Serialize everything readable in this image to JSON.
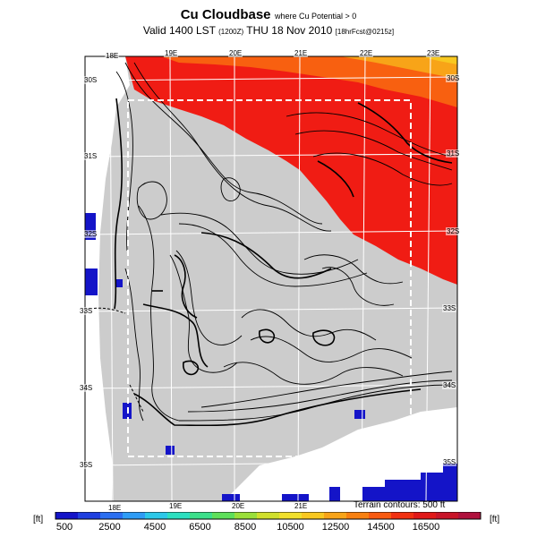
{
  "header": {
    "title": "Cu Cloudbase",
    "title_note": "where Cu Potential > 0",
    "subtitle_prefix": "Valid 1400 LST",
    "subtitle_code": "(1200Z)",
    "subtitle_date": "THU 18 Nov 2010",
    "subtitle_run": "[18hrFcst@0215z]"
  },
  "map": {
    "top_lon_labels": [
      "18E",
      "19E",
      "20E",
      "21E",
      "22E",
      "23E"
    ],
    "bottom_lon_labels": [
      "18E",
      "19E",
      "20E",
      "21E"
    ],
    "left_lat_labels": [
      "30S",
      "31S",
      "32S",
      "33S",
      "34S",
      "35S"
    ],
    "right_lat_labels": [
      "30S",
      "31S",
      "32S",
      "33S",
      "34S",
      "35S"
    ],
    "terrain_note": "Terrain contours: 500 ft",
    "no_data_color": "#cccccc",
    "boundary_style": "white-dashed"
  },
  "colorbar": {
    "unit_left": "[ft]",
    "unit_right": "[ft]",
    "tick_labels": [
      "500",
      "2500",
      "4500",
      "6500",
      "8500",
      "10500",
      "12500",
      "14500",
      "16500"
    ],
    "colors": [
      "#1414c8",
      "#1f3fe0",
      "#2a6ef0",
      "#2e9cf5",
      "#2cc8e8",
      "#2ce0c0",
      "#3ce08a",
      "#5ee05a",
      "#9ae03a",
      "#d0e02c",
      "#f0e02c",
      "#f8c820",
      "#f8a418",
      "#f88010",
      "#f85a10",
      "#f03010",
      "#e01818",
      "#c81428",
      "#b0103c"
    ]
  }
}
